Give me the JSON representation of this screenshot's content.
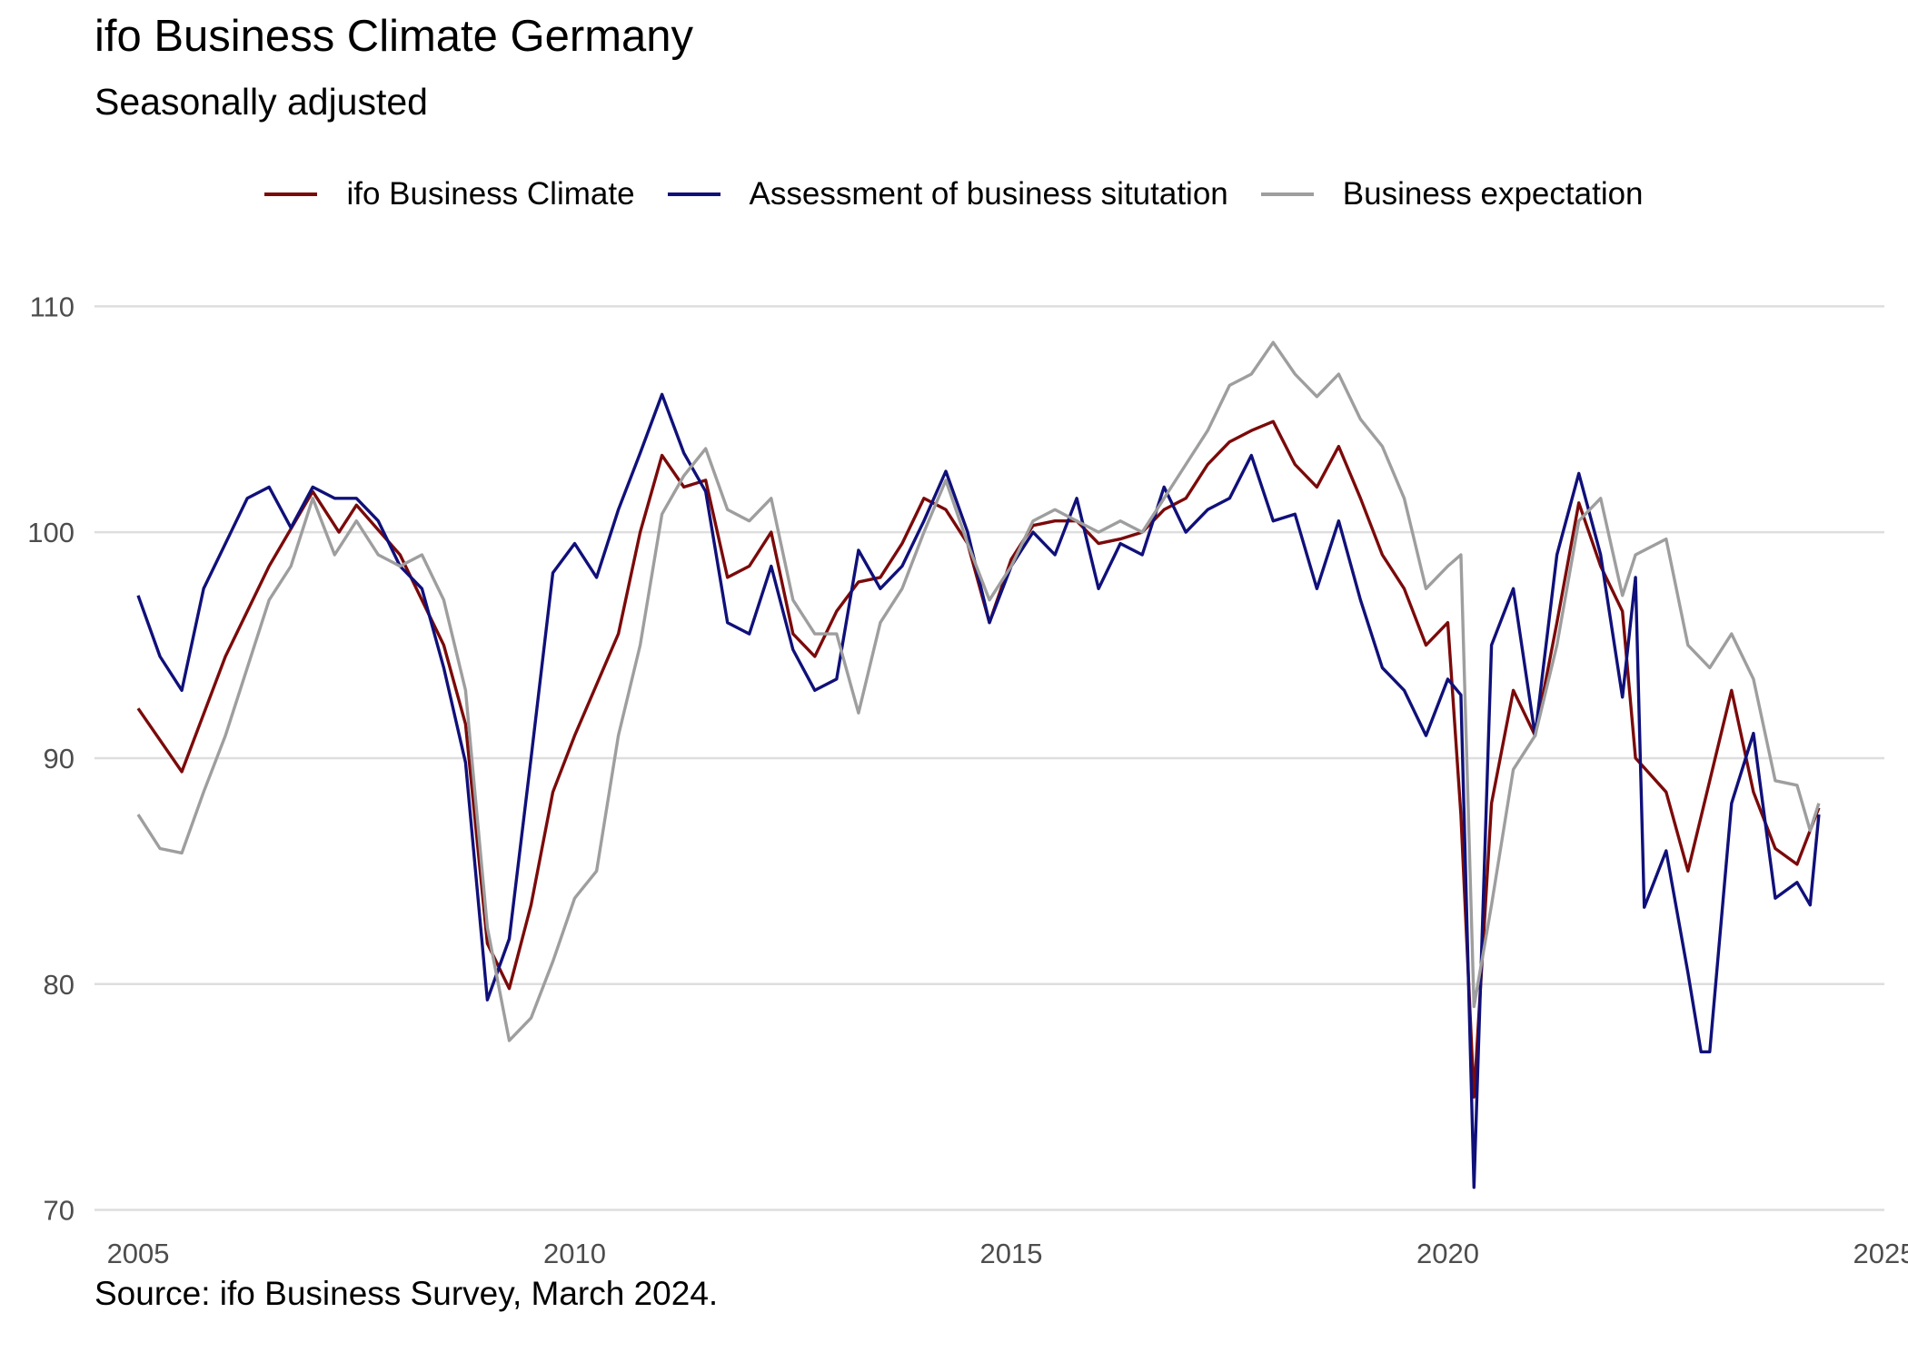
{
  "title": "ifo Business Climate Germany",
  "subtitle": "Seasonally adjusted",
  "source": "Source: ifo Business Survey, March 2024.",
  "chart_data": {
    "type": "line",
    "title": "ifo Business Climate Germany",
    "subtitle": "Seasonally adjusted",
    "xlabel": "",
    "ylabel": "",
    "xlim": [
      2004.5,
      2025.0
    ],
    "ylim": [
      69.5,
      111.5
    ],
    "x_ticks": [
      "2005",
      "2010",
      "2015",
      "2020",
      "2025"
    ],
    "y_ticks": [
      "70",
      "80",
      "90",
      "100",
      "110"
    ],
    "grid": "horizontal",
    "legend_position": "top",
    "series": [
      {
        "name": "ifo Business Climate",
        "color": "#7b0a0a",
        "points": [
          [
            2005.0,
            92.2
          ],
          [
            2005.5,
            89.4
          ],
          [
            2006.0,
            94.5
          ],
          [
            2006.5,
            98.5
          ],
          [
            2007.0,
            101.8
          ],
          [
            2007.3,
            100.0
          ],
          [
            2007.5,
            101.2
          ],
          [
            2008.0,
            99.0
          ],
          [
            2008.5,
            95.0
          ],
          [
            2008.75,
            91.5
          ],
          [
            2009.0,
            81.8
          ],
          [
            2009.25,
            79.8
          ],
          [
            2009.5,
            83.5
          ],
          [
            2009.75,
            88.5
          ],
          [
            2010.0,
            91.0
          ],
          [
            2010.5,
            95.5
          ],
          [
            2010.75,
            100.0
          ],
          [
            2011.0,
            103.4
          ],
          [
            2011.25,
            102.0
          ],
          [
            2011.5,
            102.3
          ],
          [
            2011.75,
            98.0
          ],
          [
            2012.0,
            98.5
          ],
          [
            2012.25,
            100.0
          ],
          [
            2012.5,
            95.5
          ],
          [
            2012.75,
            94.5
          ],
          [
            2013.0,
            96.5
          ],
          [
            2013.25,
            97.8
          ],
          [
            2013.5,
            98.0
          ],
          [
            2013.75,
            99.5
          ],
          [
            2014.0,
            101.5
          ],
          [
            2014.25,
            101.0
          ],
          [
            2014.5,
            99.5
          ],
          [
            2014.75,
            96.0
          ],
          [
            2015.0,
            98.8
          ],
          [
            2015.25,
            100.3
          ],
          [
            2015.5,
            100.5
          ],
          [
            2015.75,
            100.5
          ],
          [
            2016.0,
            99.5
          ],
          [
            2016.25,
            99.7
          ],
          [
            2016.5,
            100.0
          ],
          [
            2016.75,
            101.0
          ],
          [
            2017.0,
            101.5
          ],
          [
            2017.25,
            103.0
          ],
          [
            2017.5,
            104.0
          ],
          [
            2017.75,
            104.5
          ],
          [
            2018.0,
            104.9
          ],
          [
            2018.25,
            103.0
          ],
          [
            2018.5,
            102.0
          ],
          [
            2018.75,
            103.8
          ],
          [
            2019.0,
            101.5
          ],
          [
            2019.25,
            99.0
          ],
          [
            2019.5,
            97.5
          ],
          [
            2019.75,
            95.0
          ],
          [
            2020.0,
            96.0
          ],
          [
            2020.15,
            87.5
          ],
          [
            2020.3,
            75.0
          ],
          [
            2020.5,
            88.0
          ],
          [
            2020.75,
            93.0
          ],
          [
            2021.0,
            91.0
          ],
          [
            2021.25,
            96.0
          ],
          [
            2021.5,
            101.3
          ],
          [
            2021.75,
            98.5
          ],
          [
            2022.0,
            96.5
          ],
          [
            2022.15,
            90.0
          ],
          [
            2022.5,
            88.5
          ],
          [
            2022.75,
            85.0
          ],
          [
            2023.0,
            89.0
          ],
          [
            2023.25,
            93.0
          ],
          [
            2023.5,
            88.5
          ],
          [
            2023.75,
            86.0
          ],
          [
            2024.0,
            85.3
          ],
          [
            2024.25,
            87.8
          ]
        ]
      },
      {
        "name": "Assessment of business situtation",
        "color": "#10107a",
        "points": [
          [
            2005.0,
            97.2
          ],
          [
            2005.25,
            94.5
          ],
          [
            2005.5,
            93.0
          ],
          [
            2005.75,
            97.5
          ],
          [
            2006.0,
            99.5
          ],
          [
            2006.25,
            101.5
          ],
          [
            2006.5,
            102.0
          ],
          [
            2006.75,
            100.2
          ],
          [
            2007.0,
            102.0
          ],
          [
            2007.25,
            101.5
          ],
          [
            2007.5,
            101.5
          ],
          [
            2007.75,
            100.5
          ],
          [
            2008.0,
            98.5
          ],
          [
            2008.25,
            97.5
          ],
          [
            2008.5,
            94.0
          ],
          [
            2008.75,
            89.8
          ],
          [
            2009.0,
            79.3
          ],
          [
            2009.25,
            82.0
          ],
          [
            2009.5,
            90.0
          ],
          [
            2009.75,
            98.2
          ],
          [
            2010.0,
            99.5
          ],
          [
            2010.25,
            98.0
          ],
          [
            2010.5,
            101.0
          ],
          [
            2010.75,
            103.5
          ],
          [
            2011.0,
            106.1
          ],
          [
            2011.25,
            103.5
          ],
          [
            2011.5,
            101.8
          ],
          [
            2011.75,
            96.0
          ],
          [
            2012.0,
            95.5
          ],
          [
            2012.25,
            98.5
          ],
          [
            2012.5,
            94.8
          ],
          [
            2012.75,
            93.0
          ],
          [
            2013.0,
            93.5
          ],
          [
            2013.25,
            99.2
          ],
          [
            2013.5,
            97.5
          ],
          [
            2013.75,
            98.5
          ],
          [
            2014.0,
            100.5
          ],
          [
            2014.25,
            102.7
          ],
          [
            2014.5,
            100.0
          ],
          [
            2014.75,
            96.0
          ],
          [
            2015.0,
            98.5
          ],
          [
            2015.25,
            100.0
          ],
          [
            2015.5,
            99.0
          ],
          [
            2015.75,
            101.5
          ],
          [
            2016.0,
            97.5
          ],
          [
            2016.25,
            99.5
          ],
          [
            2016.5,
            99.0
          ],
          [
            2016.75,
            102.0
          ],
          [
            2017.0,
            100.0
          ],
          [
            2017.25,
            101.0
          ],
          [
            2017.5,
            101.5
          ],
          [
            2017.75,
            103.4
          ],
          [
            2018.0,
            100.5
          ],
          [
            2018.25,
            100.8
          ],
          [
            2018.5,
            97.5
          ],
          [
            2018.75,
            100.5
          ],
          [
            2019.0,
            97.0
          ],
          [
            2019.25,
            94.0
          ],
          [
            2019.5,
            93.0
          ],
          [
            2019.75,
            91.0
          ],
          [
            2020.0,
            93.5
          ],
          [
            2020.15,
            92.8
          ],
          [
            2020.3,
            71.0
          ],
          [
            2020.5,
            95.0
          ],
          [
            2020.75,
            97.5
          ],
          [
            2021.0,
            91.0
          ],
          [
            2021.25,
            99.0
          ],
          [
            2021.5,
            102.6
          ],
          [
            2021.75,
            99.0
          ],
          [
            2022.0,
            92.7
          ],
          [
            2022.15,
            98.0
          ],
          [
            2022.25,
            83.4
          ],
          [
            2022.5,
            85.9
          ],
          [
            2022.75,
            80.5
          ],
          [
            2022.9,
            77.0
          ],
          [
            2023.0,
            77.0
          ],
          [
            2023.25,
            88.0
          ],
          [
            2023.5,
            91.1
          ],
          [
            2023.75,
            83.8
          ],
          [
            2024.0,
            84.5
          ],
          [
            2024.15,
            83.5
          ],
          [
            2024.25,
            87.5
          ]
        ]
      },
      {
        "name": "Business expectation",
        "color": "#9e9e9e",
        "points": [
          [
            2005.0,
            87.5
          ],
          [
            2005.25,
            86.0
          ],
          [
            2005.5,
            85.8
          ],
          [
            2005.75,
            88.5
          ],
          [
            2006.0,
            91.0
          ],
          [
            2006.25,
            94.0
          ],
          [
            2006.5,
            97.0
          ],
          [
            2006.75,
            98.5
          ],
          [
            2007.0,
            101.5
          ],
          [
            2007.25,
            99.0
          ],
          [
            2007.5,
            100.5
          ],
          [
            2007.75,
            99.0
          ],
          [
            2008.0,
            98.5
          ],
          [
            2008.25,
            99.0
          ],
          [
            2008.5,
            97.0
          ],
          [
            2008.75,
            93.0
          ],
          [
            2009.0,
            82.5
          ],
          [
            2009.25,
            77.5
          ],
          [
            2009.5,
            78.5
          ],
          [
            2009.75,
            81.0
          ],
          [
            2010.0,
            83.8
          ],
          [
            2010.25,
            85.0
          ],
          [
            2010.5,
            91.0
          ],
          [
            2010.75,
            95.0
          ],
          [
            2011.0,
            100.8
          ],
          [
            2011.25,
            102.5
          ],
          [
            2011.5,
            103.7
          ],
          [
            2011.75,
            101.0
          ],
          [
            2012.0,
            100.5
          ],
          [
            2012.25,
            101.5
          ],
          [
            2012.5,
            97.0
          ],
          [
            2012.75,
            95.5
          ],
          [
            2013.0,
            95.5
          ],
          [
            2013.25,
            92.0
          ],
          [
            2013.5,
            96.0
          ],
          [
            2013.75,
            97.5
          ],
          [
            2014.0,
            100.0
          ],
          [
            2014.25,
            102.3
          ],
          [
            2014.5,
            99.5
          ],
          [
            2014.75,
            97.0
          ],
          [
            2015.0,
            98.5
          ],
          [
            2015.25,
            100.5
          ],
          [
            2015.5,
            101.0
          ],
          [
            2015.75,
            100.5
          ],
          [
            2016.0,
            100.0
          ],
          [
            2016.25,
            100.5
          ],
          [
            2016.5,
            100.0
          ],
          [
            2016.75,
            101.5
          ],
          [
            2017.0,
            103.0
          ],
          [
            2017.25,
            104.5
          ],
          [
            2017.5,
            106.5
          ],
          [
            2017.75,
            107.0
          ],
          [
            2018.0,
            108.4
          ],
          [
            2018.25,
            107.0
          ],
          [
            2018.5,
            106.0
          ],
          [
            2018.75,
            107.0
          ],
          [
            2019.0,
            105.0
          ],
          [
            2019.25,
            103.8
          ],
          [
            2019.5,
            101.5
          ],
          [
            2019.75,
            97.5
          ],
          [
            2020.0,
            98.5
          ],
          [
            2020.15,
            99.0
          ],
          [
            2020.3,
            79.0
          ],
          [
            2020.5,
            83.5
          ],
          [
            2020.75,
            89.5
          ],
          [
            2021.0,
            91.0
          ],
          [
            2021.25,
            95.0
          ],
          [
            2021.5,
            100.5
          ],
          [
            2021.75,
            101.5
          ],
          [
            2022.0,
            97.2
          ],
          [
            2022.15,
            99.0
          ],
          [
            2022.5,
            99.7
          ],
          [
            2022.75,
            95.0
          ],
          [
            2023.0,
            94.0
          ],
          [
            2023.25,
            95.5
          ],
          [
            2023.5,
            93.5
          ],
          [
            2023.75,
            89.0
          ],
          [
            2024.0,
            88.8
          ],
          [
            2024.15,
            86.8
          ],
          [
            2024.25,
            88.0
          ]
        ]
      }
    ]
  }
}
